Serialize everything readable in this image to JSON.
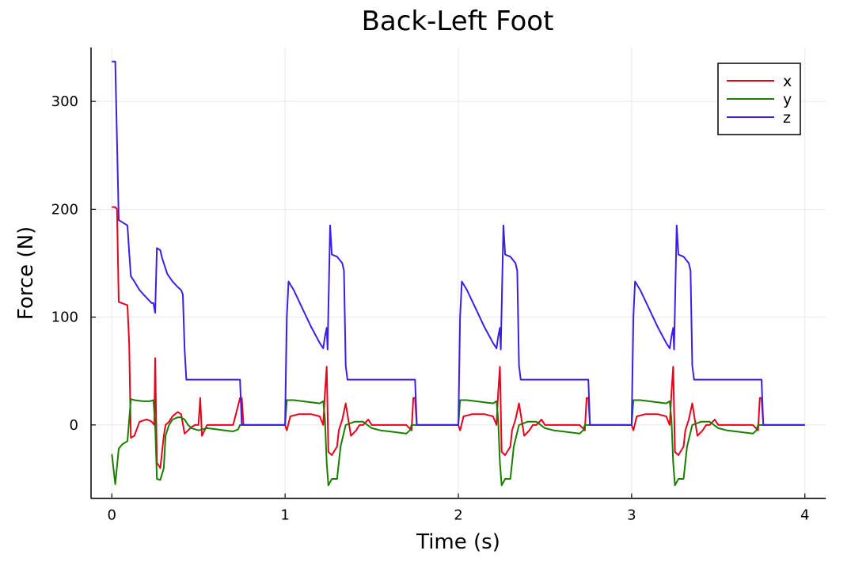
{
  "chart_data": {
    "type": "line",
    "title": "Back-Left Foot",
    "xlabel": "Time (s)",
    "ylabel": "Force (N)",
    "xlim": [
      -0.12,
      4.12
    ],
    "ylim": [
      -68,
      350
    ],
    "xticks": [
      0,
      1,
      2,
      3,
      4
    ],
    "yticks": [
      0,
      100,
      200,
      300
    ],
    "grid": true,
    "legend_position": "top-right",
    "series": [
      {
        "name": "x",
        "color": "#e8001c",
        "points": [
          [
            0.0,
            202
          ],
          [
            0.02,
            202
          ],
          [
            0.03,
            200
          ],
          [
            0.04,
            114
          ],
          [
            0.09,
            111
          ],
          [
            0.1,
            75
          ],
          [
            0.11,
            -12
          ],
          [
            0.13,
            -10
          ],
          [
            0.16,
            3
          ],
          [
            0.2,
            5
          ],
          [
            0.22,
            4
          ],
          [
            0.23,
            3
          ],
          [
            0.245,
            0
          ],
          [
            0.25,
            62
          ],
          [
            0.26,
            -35
          ],
          [
            0.28,
            -40
          ],
          [
            0.3,
            -10
          ],
          [
            0.31,
            0
          ],
          [
            0.33,
            3
          ],
          [
            0.35,
            8
          ],
          [
            0.38,
            12
          ],
          [
            0.4,
            10
          ],
          [
            0.42,
            -8
          ],
          [
            0.44,
            -5
          ],
          [
            0.46,
            -2
          ],
          [
            0.48,
            0
          ],
          [
            0.5,
            0
          ],
          [
            0.51,
            25
          ],
          [
            0.52,
            -10
          ],
          [
            0.55,
            0
          ],
          [
            0.58,
            0
          ],
          [
            0.6,
            0
          ],
          [
            0.65,
            0
          ],
          [
            0.7,
            0
          ],
          [
            0.74,
            25
          ],
          [
            0.75,
            25
          ],
          [
            0.76,
            0
          ],
          [
            1.0,
            0
          ],
          [
            1.01,
            -5
          ],
          [
            1.03,
            8
          ],
          [
            1.08,
            10
          ],
          [
            1.15,
            10
          ],
          [
            1.2,
            8
          ],
          [
            1.22,
            0
          ],
          [
            1.23,
            30
          ],
          [
            1.24,
            54
          ],
          [
            1.25,
            -25
          ],
          [
            1.27,
            -28
          ],
          [
            1.3,
            -20
          ],
          [
            1.31,
            -5
          ],
          [
            1.33,
            5
          ],
          [
            1.35,
            20
          ],
          [
            1.37,
            0
          ],
          [
            1.38,
            -10
          ],
          [
            1.41,
            -5
          ],
          [
            1.43,
            0
          ],
          [
            1.45,
            0
          ],
          [
            1.48,
            5
          ],
          [
            1.5,
            0
          ],
          [
            1.55,
            0
          ],
          [
            1.6,
            0
          ],
          [
            1.65,
            0
          ],
          [
            1.7,
            0
          ],
          [
            1.73,
            -5
          ],
          [
            1.74,
            25
          ],
          [
            1.75,
            25
          ],
          [
            1.76,
            0
          ],
          [
            2.0,
            0
          ],
          [
            2.01,
            -5
          ],
          [
            2.03,
            8
          ],
          [
            2.08,
            10
          ],
          [
            2.15,
            10
          ],
          [
            2.2,
            8
          ],
          [
            2.22,
            0
          ],
          [
            2.23,
            30
          ],
          [
            2.24,
            54
          ],
          [
            2.25,
            -25
          ],
          [
            2.27,
            -28
          ],
          [
            2.3,
            -20
          ],
          [
            2.31,
            -5
          ],
          [
            2.33,
            5
          ],
          [
            2.35,
            20
          ],
          [
            2.37,
            0
          ],
          [
            2.38,
            -10
          ],
          [
            2.41,
            -5
          ],
          [
            2.43,
            0
          ],
          [
            2.45,
            0
          ],
          [
            2.48,
            5
          ],
          [
            2.5,
            0
          ],
          [
            2.55,
            0
          ],
          [
            2.6,
            0
          ],
          [
            2.65,
            0
          ],
          [
            2.7,
            0
          ],
          [
            2.73,
            -5
          ],
          [
            2.74,
            25
          ],
          [
            2.75,
            25
          ],
          [
            2.76,
            0
          ],
          [
            3.0,
            0
          ],
          [
            3.01,
            -5
          ],
          [
            3.03,
            8
          ],
          [
            3.08,
            10
          ],
          [
            3.15,
            10
          ],
          [
            3.2,
            8
          ],
          [
            3.22,
            0
          ],
          [
            3.23,
            30
          ],
          [
            3.24,
            54
          ],
          [
            3.25,
            -25
          ],
          [
            3.27,
            -28
          ],
          [
            3.3,
            -20
          ],
          [
            3.31,
            -5
          ],
          [
            3.33,
            5
          ],
          [
            3.35,
            20
          ],
          [
            3.37,
            0
          ],
          [
            3.38,
            -10
          ],
          [
            3.41,
            -5
          ],
          [
            3.43,
            0
          ],
          [
            3.45,
            0
          ],
          [
            3.48,
            5
          ],
          [
            3.5,
            0
          ],
          [
            3.55,
            0
          ],
          [
            3.6,
            0
          ],
          [
            3.65,
            0
          ],
          [
            3.7,
            0
          ],
          [
            3.73,
            -5
          ],
          [
            3.74,
            25
          ],
          [
            3.75,
            25
          ],
          [
            3.76,
            0
          ],
          [
            4.0,
            0
          ]
        ]
      },
      {
        "name": "y",
        "color": "#1a7f00",
        "points": [
          [
            0.0,
            -27
          ],
          [
            0.02,
            -55
          ],
          [
            0.04,
            -22
          ],
          [
            0.06,
            -18
          ],
          [
            0.09,
            -15
          ],
          [
            0.1,
            5
          ],
          [
            0.11,
            24
          ],
          [
            0.13,
            23
          ],
          [
            0.18,
            22
          ],
          [
            0.22,
            22
          ],
          [
            0.24,
            23
          ],
          [
            0.25,
            0
          ],
          [
            0.26,
            -50
          ],
          [
            0.28,
            -51
          ],
          [
            0.3,
            -40
          ],
          [
            0.31,
            -10
          ],
          [
            0.33,
            0
          ],
          [
            0.35,
            5
          ],
          [
            0.38,
            7
          ],
          [
            0.4,
            7
          ],
          [
            0.42,
            5
          ],
          [
            0.44,
            0
          ],
          [
            0.46,
            -3
          ],
          [
            0.5,
            -5
          ],
          [
            0.55,
            -3
          ],
          [
            0.6,
            -4
          ],
          [
            0.65,
            -5
          ],
          [
            0.7,
            -6
          ],
          [
            0.73,
            -4
          ],
          [
            0.74,
            0
          ],
          [
            0.75,
            0
          ],
          [
            1.0,
            0
          ],
          [
            1.01,
            23
          ],
          [
            1.05,
            23
          ],
          [
            1.1,
            22
          ],
          [
            1.15,
            21
          ],
          [
            1.2,
            20
          ],
          [
            1.22,
            22
          ],
          [
            1.23,
            5
          ],
          [
            1.24,
            -35
          ],
          [
            1.25,
            -56
          ],
          [
            1.27,
            -50
          ],
          [
            1.3,
            -50
          ],
          [
            1.32,
            -20
          ],
          [
            1.35,
            0
          ],
          [
            1.4,
            3
          ],
          [
            1.45,
            3
          ],
          [
            1.5,
            -3
          ],
          [
            1.55,
            -5
          ],
          [
            1.6,
            -6
          ],
          [
            1.65,
            -7
          ],
          [
            1.7,
            -8
          ],
          [
            1.72,
            -5
          ],
          [
            1.73,
            0
          ],
          [
            1.75,
            0
          ],
          [
            2.0,
            0
          ],
          [
            2.01,
            23
          ],
          [
            2.05,
            23
          ],
          [
            2.1,
            22
          ],
          [
            2.15,
            21
          ],
          [
            2.2,
            20
          ],
          [
            2.22,
            22
          ],
          [
            2.23,
            5
          ],
          [
            2.24,
            -35
          ],
          [
            2.25,
            -56
          ],
          [
            2.27,
            -50
          ],
          [
            2.3,
            -50
          ],
          [
            2.32,
            -20
          ],
          [
            2.35,
            0
          ],
          [
            2.4,
            3
          ],
          [
            2.45,
            3
          ],
          [
            2.5,
            -3
          ],
          [
            2.55,
            -5
          ],
          [
            2.6,
            -6
          ],
          [
            2.65,
            -7
          ],
          [
            2.7,
            -8
          ],
          [
            2.72,
            -5
          ],
          [
            2.73,
            0
          ],
          [
            2.75,
            0
          ],
          [
            3.0,
            0
          ],
          [
            3.01,
            23
          ],
          [
            3.05,
            23
          ],
          [
            3.1,
            22
          ],
          [
            3.15,
            21
          ],
          [
            3.2,
            20
          ],
          [
            3.22,
            22
          ],
          [
            3.23,
            5
          ],
          [
            3.24,
            -35
          ],
          [
            3.25,
            -56
          ],
          [
            3.27,
            -50
          ],
          [
            3.3,
            -50
          ],
          [
            3.32,
            -20
          ],
          [
            3.35,
            0
          ],
          [
            3.4,
            3
          ],
          [
            3.45,
            3
          ],
          [
            3.5,
            -3
          ],
          [
            3.55,
            -5
          ],
          [
            3.6,
            -6
          ],
          [
            3.65,
            -7
          ],
          [
            3.7,
            -8
          ],
          [
            3.72,
            -5
          ],
          [
            3.73,
            0
          ],
          [
            3.75,
            0
          ],
          [
            4.0,
            0
          ]
        ]
      },
      {
        "name": "z",
        "color": "#3b1fe6",
        "points": [
          [
            0.0,
            337
          ],
          [
            0.02,
            337
          ],
          [
            0.04,
            190
          ],
          [
            0.06,
            188
          ],
          [
            0.09,
            185
          ],
          [
            0.1,
            160
          ],
          [
            0.11,
            138
          ],
          [
            0.13,
            133
          ],
          [
            0.16,
            125
          ],
          [
            0.2,
            118
          ],
          [
            0.23,
            113
          ],
          [
            0.24,
            113
          ],
          [
            0.25,
            104
          ],
          [
            0.26,
            164
          ],
          [
            0.28,
            162
          ],
          [
            0.29,
            155
          ],
          [
            0.3,
            150
          ],
          [
            0.32,
            140
          ],
          [
            0.35,
            133
          ],
          [
            0.38,
            128
          ],
          [
            0.4,
            125
          ],
          [
            0.41,
            121
          ],
          [
            0.42,
            70
          ],
          [
            0.43,
            42
          ],
          [
            0.5,
            42
          ],
          [
            0.6,
            42
          ],
          [
            0.7,
            42
          ],
          [
            0.74,
            42
          ],
          [
            0.75,
            0
          ],
          [
            1.0,
            0
          ],
          [
            1.01,
            100
          ],
          [
            1.02,
            133
          ],
          [
            1.05,
            125
          ],
          [
            1.1,
            108
          ],
          [
            1.15,
            91
          ],
          [
            1.2,
            76
          ],
          [
            1.22,
            71
          ],
          [
            1.23,
            82
          ],
          [
            1.24,
            90
          ],
          [
            1.245,
            70
          ],
          [
            1.26,
            185
          ],
          [
            1.27,
            158
          ],
          [
            1.3,
            156
          ],
          [
            1.33,
            150
          ],
          [
            1.34,
            143
          ],
          [
            1.35,
            55
          ],
          [
            1.36,
            42
          ],
          [
            1.45,
            42
          ],
          [
            1.55,
            42
          ],
          [
            1.65,
            42
          ],
          [
            1.75,
            42
          ],
          [
            1.76,
            0
          ],
          [
            2.0,
            0
          ],
          [
            2.01,
            100
          ],
          [
            2.02,
            133
          ],
          [
            2.05,
            125
          ],
          [
            2.1,
            108
          ],
          [
            2.15,
            91
          ],
          [
            2.2,
            76
          ],
          [
            2.22,
            71
          ],
          [
            2.23,
            82
          ],
          [
            2.24,
            90
          ],
          [
            2.245,
            70
          ],
          [
            2.26,
            185
          ],
          [
            2.27,
            158
          ],
          [
            2.3,
            156
          ],
          [
            2.33,
            150
          ],
          [
            2.34,
            143
          ],
          [
            2.35,
            55
          ],
          [
            2.36,
            42
          ],
          [
            2.45,
            42
          ],
          [
            2.55,
            42
          ],
          [
            2.65,
            42
          ],
          [
            2.75,
            42
          ],
          [
            2.76,
            0
          ],
          [
            3.0,
            0
          ],
          [
            3.01,
            100
          ],
          [
            3.02,
            133
          ],
          [
            3.05,
            125
          ],
          [
            3.1,
            108
          ],
          [
            3.15,
            91
          ],
          [
            3.2,
            76
          ],
          [
            3.22,
            71
          ],
          [
            3.23,
            82
          ],
          [
            3.24,
            90
          ],
          [
            3.245,
            70
          ],
          [
            3.26,
            185
          ],
          [
            3.27,
            158
          ],
          [
            3.3,
            156
          ],
          [
            3.33,
            150
          ],
          [
            3.34,
            143
          ],
          [
            3.35,
            55
          ],
          [
            3.36,
            42
          ],
          [
            3.45,
            42
          ],
          [
            3.55,
            42
          ],
          [
            3.65,
            42
          ],
          [
            3.75,
            42
          ],
          [
            3.76,
            0
          ],
          [
            4.0,
            0
          ]
        ]
      }
    ]
  }
}
